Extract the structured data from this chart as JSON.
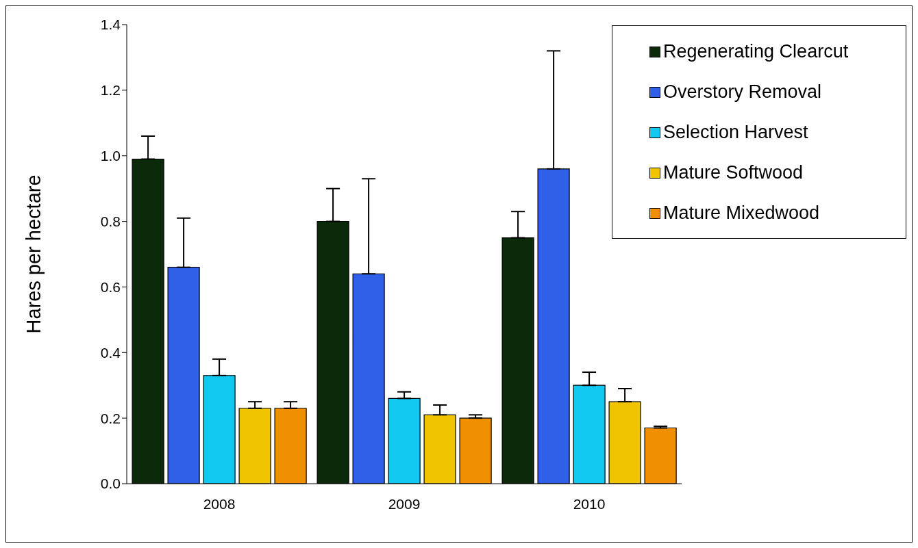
{
  "chart_data": {
    "type": "bar",
    "ylabel": "Hares per hectare",
    "categories": [
      "2008",
      "2009",
      "2010"
    ],
    "series": [
      {
        "name": "Regenerating Clearcut",
        "color": "#0a2a0a",
        "values": [
          0.99,
          0.8,
          0.75
        ],
        "errors": [
          [
            0.99,
            1.06
          ],
          [
            0.8,
            0.9
          ],
          [
            0.75,
            0.83
          ]
        ]
      },
      {
        "name": "Overstory Removal",
        "color": "#3060e8",
        "values": [
          0.66,
          0.64,
          0.96
        ],
        "errors": [
          [
            0.66,
            0.81
          ],
          [
            0.64,
            0.93
          ],
          [
            0.96,
            1.32
          ]
        ]
      },
      {
        "name": "Selection Harvest",
        "color": "#10c8f0",
        "values": [
          0.33,
          0.26,
          0.3
        ],
        "errors": [
          [
            0.33,
            0.38
          ],
          [
            0.26,
            0.28
          ],
          [
            0.3,
            0.34
          ]
        ]
      },
      {
        "name": "Mature Softwood",
        "color": "#f0c400",
        "values": [
          0.23,
          0.21,
          0.25
        ],
        "errors": [
          [
            0.23,
            0.25
          ],
          [
            0.21,
            0.24
          ],
          [
            0.25,
            0.29
          ]
        ]
      },
      {
        "name": "Mature Mixedwood",
        "color": "#f09000",
        "values": [
          0.23,
          0.2,
          0.17
        ],
        "errors": [
          [
            0.23,
            0.25
          ],
          [
            0.2,
            0.21
          ],
          [
            0.17,
            0.175
          ]
        ]
      }
    ],
    "ylim": [
      0,
      1.4
    ],
    "yticks": [
      {
        "value": 0,
        "label": "0.0"
      },
      {
        "value": 0.2,
        "label": "0.2"
      },
      {
        "value": 0.4,
        "label": "0.4"
      },
      {
        "value": 0.6,
        "label": "0.6"
      },
      {
        "value": 0.8,
        "label": "0.8"
      },
      {
        "value": 1,
        "label": "1.0"
      },
      {
        "value": 1.2,
        "label": "1.2"
      },
      {
        "value": 1.4,
        "label": "1.4"
      }
    ],
    "grid": false,
    "legend": "top right"
  }
}
